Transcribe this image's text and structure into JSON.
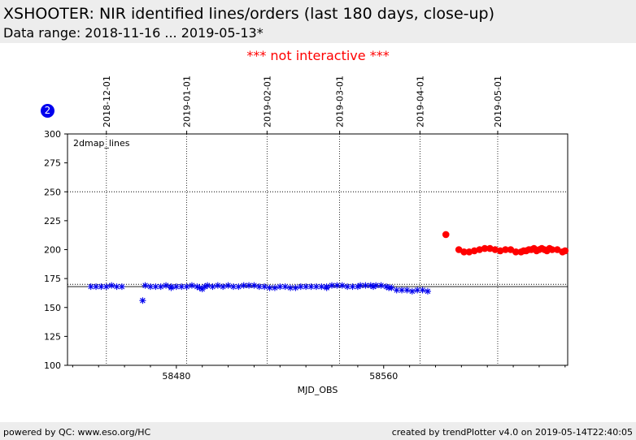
{
  "header": {
    "title": "XSHOOTER: NIR identified lines/orders (last 180 days, close-up)",
    "subtitle": "Data range: 2018-11-16 ... 2019-05-13*"
  },
  "notice": "*** not interactive ***",
  "badge": "2",
  "footer": {
    "left": "powered by QC: www.eso.org/HC",
    "right": "created by trendPlotter v4.0 on 2019-05-14T22:40:05"
  },
  "colors": {
    "series_blue": "#0000ee",
    "series_red": "#ff0000",
    "notice": "#ff0000",
    "header_bg": "#ededed"
  },
  "chart_data": {
    "type": "scatter",
    "panel_label": "2dmap_lines",
    "xlabel": "MJD_OBS",
    "ylabel": "",
    "xlim": [
      58438,
      58631
    ],
    "ylim": [
      100,
      300
    ],
    "yticks": [
      100,
      125,
      150,
      175,
      200,
      225,
      250,
      275,
      300
    ],
    "xticks": [
      58480,
      58560
    ],
    "x_minor_step": 10,
    "top_date_ticks": [
      {
        "label": "2018-12-01",
        "mjd": 58453
      },
      {
        "label": "2019-01-01",
        "mjd": 58484
      },
      {
        "label": "2019-02-01",
        "mjd": 58515
      },
      {
        "label": "2019-03-01",
        "mjd": 58543
      },
      {
        "label": "2019-04-01",
        "mjd": 58574
      },
      {
        "label": "2019-05-01",
        "mjd": 58604
      }
    ],
    "reference_lines": [
      {
        "y": 168,
        "style": "solid"
      },
      {
        "y": 170,
        "style": "dotted"
      },
      {
        "y": 250,
        "style": "dotted"
      }
    ],
    "grid": "dates",
    "series": [
      {
        "marker": "x-star",
        "color": "#0000ee",
        "points": [
          [
            58447,
            168
          ],
          [
            58449,
            168
          ],
          [
            58451,
            168
          ],
          [
            58453,
            168
          ],
          [
            58455,
            169
          ],
          [
            58457,
            168
          ],
          [
            58459,
            168
          ],
          [
            58467,
            156
          ],
          [
            58468,
            169
          ],
          [
            58470,
            168
          ],
          [
            58472,
            168
          ],
          [
            58474,
            168
          ],
          [
            58476,
            169
          ],
          [
            58478,
            168
          ],
          [
            58480,
            168
          ],
          [
            58482,
            168
          ],
          [
            58484,
            168
          ],
          [
            58486,
            169
          ],
          [
            58488,
            168
          ],
          [
            58489,
            167
          ],
          [
            58491,
            168
          ],
          [
            58492,
            169
          ],
          [
            58494,
            168
          ],
          [
            58496,
            169
          ],
          [
            58498,
            168
          ],
          [
            58500,
            169
          ],
          [
            58502,
            168
          ],
          [
            58504,
            168
          ],
          [
            58506,
            169
          ],
          [
            58508,
            169
          ],
          [
            58510,
            169
          ],
          [
            58512,
            168
          ],
          [
            58514,
            168
          ],
          [
            58516,
            167
          ],
          [
            58518,
            167
          ],
          [
            58520,
            168
          ],
          [
            58522,
            168
          ],
          [
            58524,
            167
          ],
          [
            58526,
            167
          ],
          [
            58528,
            168
          ],
          [
            58530,
            168
          ],
          [
            58532,
            168
          ],
          [
            58534,
            168
          ],
          [
            58536,
            168
          ],
          [
            58538,
            168
          ],
          [
            58540,
            169
          ],
          [
            58542,
            169
          ],
          [
            58544,
            169
          ],
          [
            58546,
            168
          ],
          [
            58548,
            168
          ],
          [
            58550,
            168
          ],
          [
            58551,
            169
          ],
          [
            58553,
            169
          ],
          [
            58555,
            169
          ],
          [
            58557,
            169
          ],
          [
            58559,
            169
          ],
          [
            58561,
            168
          ],
          [
            58563,
            167
          ],
          [
            58565,
            165
          ],
          [
            58567,
            165
          ],
          [
            58569,
            165
          ],
          [
            58571,
            164
          ],
          [
            58573,
            165
          ],
          [
            58575,
            165
          ],
          [
            58577,
            164
          ],
          [
            58478,
            167
          ],
          [
            58490,
            166
          ],
          [
            58538,
            167
          ],
          [
            58556,
            168
          ],
          [
            58562,
            167
          ]
        ]
      },
      {
        "marker": "circle",
        "color": "#ff0000",
        "points": [
          [
            58584,
            213
          ],
          [
            58589,
            200
          ],
          [
            58591,
            198
          ],
          [
            58593,
            198
          ],
          [
            58595,
            199
          ],
          [
            58597,
            200
          ],
          [
            58599,
            201
          ],
          [
            58601,
            201
          ],
          [
            58603,
            200
          ],
          [
            58605,
            199
          ],
          [
            58607,
            200
          ],
          [
            58609,
            200
          ],
          [
            58611,
            198
          ],
          [
            58613,
            198
          ],
          [
            58614,
            199
          ],
          [
            58615,
            199
          ],
          [
            58616,
            200
          ],
          [
            58617,
            200
          ],
          [
            58618,
            201
          ],
          [
            58619,
            199
          ],
          [
            58620,
            200
          ],
          [
            58621,
            201
          ],
          [
            58622,
            200
          ],
          [
            58623,
            199
          ],
          [
            58624,
            201
          ],
          [
            58625,
            200
          ],
          [
            58627,
            200
          ],
          [
            58629,
            198
          ],
          [
            58630,
            199
          ]
        ]
      }
    ]
  }
}
